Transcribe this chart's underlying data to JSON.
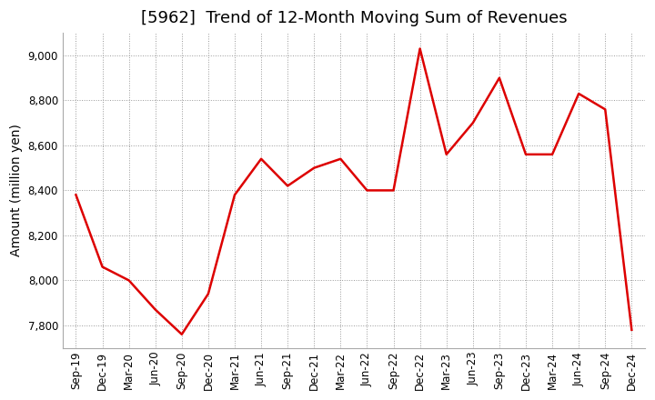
{
  "title": "[5962]  Trend of 12-Month Moving Sum of Revenues",
  "ylabel": "Amount (million yen)",
  "line_color": "#dd0000",
  "line_width": 1.8,
  "background_color": "#ffffff",
  "grid_color": "#999999",
  "x_labels": [
    "Sep-19",
    "Dec-19",
    "Mar-20",
    "Jun-20",
    "Sep-20",
    "Dec-20",
    "Mar-21",
    "Jun-21",
    "Sep-21",
    "Dec-21",
    "Mar-22",
    "Jun-22",
    "Sep-22",
    "Dec-22",
    "Mar-23",
    "Jun-23",
    "Sep-23",
    "Dec-23",
    "Mar-24",
    "Jun-24",
    "Sep-24",
    "Dec-24"
  ],
  "values": [
    8380,
    8060,
    8000,
    7870,
    7760,
    7940,
    8380,
    8540,
    8420,
    8500,
    8540,
    8400,
    8400,
    9030,
    8560,
    8700,
    8900,
    8560,
    8560,
    8830,
    8760,
    7780
  ],
  "ylim": [
    7700,
    9100
  ],
  "yticks": [
    7800,
    8000,
    8200,
    8400,
    8600,
    8800,
    9000
  ],
  "title_fontsize": 13,
  "tick_fontsize": 8.5,
  "ylabel_fontsize": 10
}
